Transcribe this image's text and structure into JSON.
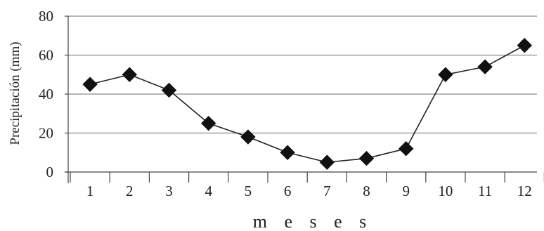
{
  "chart_data": {
    "type": "line",
    "title": "",
    "xlabel": "m e s e s",
    "ylabel": "Precipitación (mm)",
    "categories": [
      "1",
      "2",
      "3",
      "4",
      "5",
      "6",
      "7",
      "8",
      "9",
      "10",
      "11",
      "12"
    ],
    "series": [
      {
        "values": [
          45,
          50,
          42,
          25,
          18,
          10,
          5,
          7,
          12,
          50,
          54,
          65
        ],
        "marker": "diamond",
        "color": "#111111"
      }
    ],
    "ylim": [
      0,
      80
    ],
    "yticks": [
      "0",
      "20",
      "40",
      "60",
      "80"
    ],
    "grid": "horizontal",
    "legend": "none"
  }
}
